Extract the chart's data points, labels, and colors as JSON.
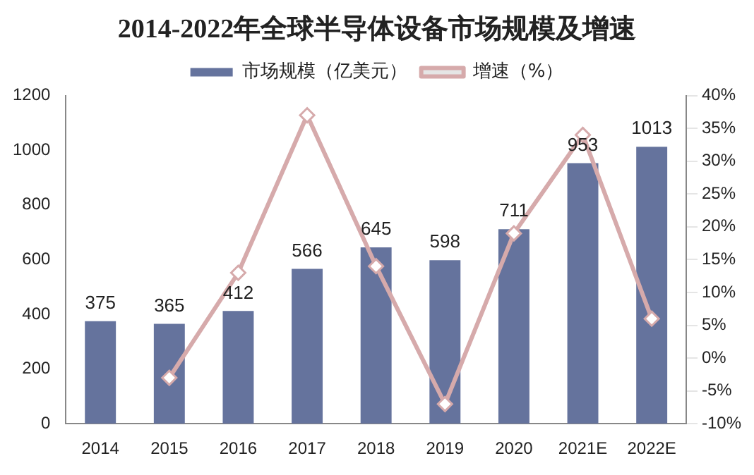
{
  "chart_data": {
    "type": "bar",
    "title": "2014-2022年全球半导体设备市场规模及增速",
    "categories": [
      "2014",
      "2015",
      "2016",
      "2017",
      "2018",
      "2019",
      "2020",
      "2021E",
      "2022E"
    ],
    "series": [
      {
        "name": "市场规模（亿美元）",
        "color": "#65739d",
        "values": [
          375,
          365,
          412,
          566,
          645,
          598,
          711,
          953,
          1013
        ],
        "value_labels": [
          "375",
          "365",
          "412",
          "566",
          "645",
          "598",
          "711",
          "953",
          "1013"
        ]
      },
      {
        "name": "增速（%）",
        "type": "line",
        "axis": "y2",
        "color": "#d6aaab",
        "marker": "diamond",
        "values": [
          null,
          -3,
          13,
          37,
          14,
          -7,
          19,
          34,
          6
        ]
      }
    ],
    "ylim": [
      0,
      1200
    ],
    "yticks": [
      0,
      200,
      400,
      600,
      800,
      1000,
      1200
    ],
    "y2lim": [
      -10,
      40
    ],
    "y2ticks": [
      {
        "value": -10,
        "label": "-10%"
      },
      {
        "value": -5,
        "label": "-5%"
      },
      {
        "value": 0,
        "label": "0%"
      },
      {
        "value": 5,
        "label": "5%"
      },
      {
        "value": 10,
        "label": "10%"
      },
      {
        "value": 15,
        "label": "15%"
      },
      {
        "value": 20,
        "label": "20%"
      },
      {
        "value": 25,
        "label": "25%"
      },
      {
        "value": 30,
        "label": "30%"
      },
      {
        "value": 35,
        "label": "35%"
      },
      {
        "value": 40,
        "label": "40%"
      }
    ],
    "grid": false,
    "legend": "top"
  }
}
